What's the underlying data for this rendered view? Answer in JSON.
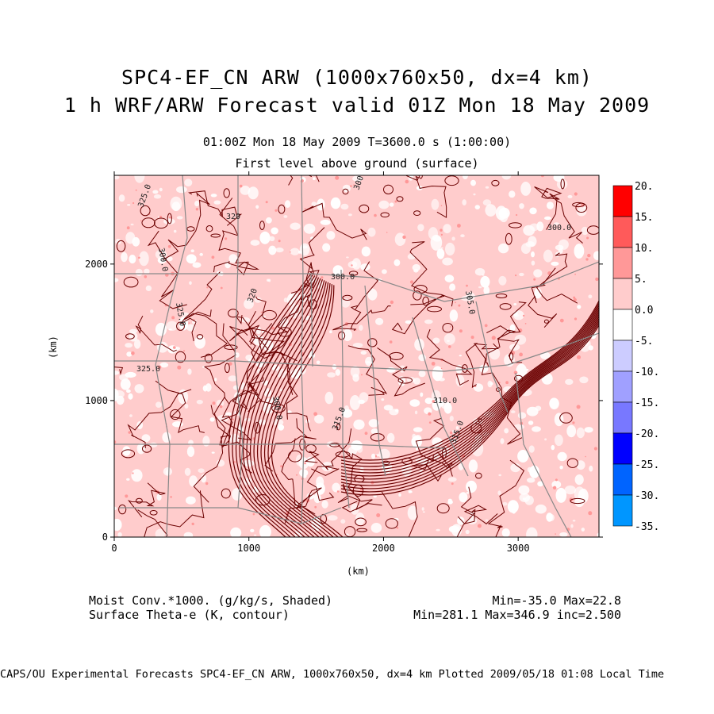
{
  "header": {
    "title_line1": "SPC4-EF_CN ARW (1000x760x50, dx=4 km)",
    "title_line2": "1 h WRF/ARW Forecast valid 01Z Mon 18 May 2009",
    "subtitle_time": "01:00Z Mon 18 May 2009     T=3600.0 s (1:00:00)",
    "subtitle_level": "First level above ground (surface)"
  },
  "legend": {
    "shaded_label": "Moist Conv.*1000. (g/kg/s, Shaded)",
    "contour_label": "Surface Theta-e (K, contour)",
    "shaded_stats": "Min=-35.0 Max=22.8",
    "contour_stats": "Min=281.1 Max=346.9 inc=2.500"
  },
  "footer": "CAPS/OU Experimental Forecasts  SPC4-EF_CN ARW, 1000x760x50, dx=4 km  Plotted 2009/05/18 01:08 Local Time",
  "chart_data": {
    "type": "heatmap",
    "title": "SPC4-EF_CN ARW (1000x760x50, dx=4 km)",
    "subtitle": "1 h WRF/ARW Forecast valid 01Z Mon 18 May 2009",
    "xlabel": "(km)",
    "ylabel": "(km)",
    "xlim": [
      0,
      3600
    ],
    "ylim": [
      0,
      2650
    ],
    "x_ticks": [
      0,
      1000,
      2000,
      3000
    ],
    "y_ticks": [
      0,
      1000,
      2000
    ],
    "x_tick_labels": [
      "0",
      "1000",
      "2000",
      "3000"
    ],
    "y_tick_labels": [
      "0",
      "1000",
      "2000"
    ],
    "colorbar": {
      "levels": [
        "20.",
        "15.",
        "10.",
        "5.",
        "0.0",
        "-5.",
        "-10.",
        "-15.",
        "-20.",
        "-25.",
        "-30.",
        "-35."
      ],
      "colors": [
        "#ff0000",
        "#ff5a5a",
        "#ff9898",
        "#ffcccc",
        "#ffffff",
        "#ccccff",
        "#a0a0ff",
        "#7878ff",
        "#0000ff",
        "#0064ff",
        "#0096ff",
        "#00ffff"
      ]
    },
    "shaded_field": {
      "name": "Moist Conv.*1000.",
      "units": "g/kg/s",
      "min": -35.0,
      "max": 22.8
    },
    "contour_field": {
      "name": "Surface Theta-e",
      "units": "K",
      "min": 281.1,
      "max": 346.9,
      "interval": 2.5
    },
    "contour_labels": [
      "325.0",
      "320",
      "300.0",
      "300.0",
      "300.0",
      "325.0",
      "320",
      "325.0",
      "300.0",
      "315.0",
      "310.0",
      "305.0",
      "315.0",
      "300.0"
    ],
    "colors": {
      "contour": "#6b0000",
      "boundary": "#888888",
      "frame": "#000000",
      "shade_light": "#ffcccc"
    }
  }
}
